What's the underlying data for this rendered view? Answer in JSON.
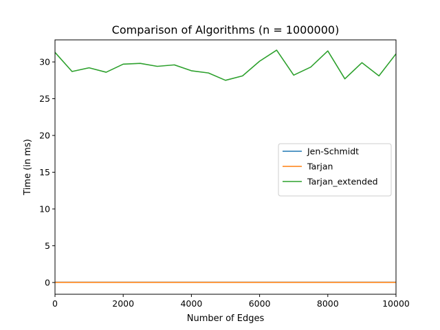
{
  "chart_data": {
    "type": "line",
    "title": "Comparison of Algorithms (n = 1000000)",
    "xlabel": "Number of Edges",
    "ylabel": "Time (in ms)",
    "xlim": [
      0,
      10000
    ],
    "ylim": [
      -1.6,
      33.0
    ],
    "xticks": [
      0,
      2000,
      4000,
      6000,
      8000,
      10000
    ],
    "yticks": [
      0,
      5,
      10,
      15,
      20,
      25,
      30
    ],
    "grid": false,
    "legend_position": "center-right",
    "x": [
      0,
      500,
      1000,
      1500,
      2000,
      2500,
      3000,
      3500,
      4000,
      4500,
      5000,
      5500,
      6000,
      6500,
      7000,
      7500,
      8000,
      8500,
      9000,
      9500,
      10000
    ],
    "series": [
      {
        "name": "Jen-Schmidt",
        "color": "#1f77b4",
        "values": [
          0.03,
          0.03,
          0.03,
          0.03,
          0.03,
          0.03,
          0.03,
          0.03,
          0.03,
          0.03,
          0.03,
          0.03,
          0.03,
          0.03,
          0.03,
          0.03,
          0.03,
          0.03,
          0.03,
          0.03,
          0.03
        ]
      },
      {
        "name": "Tarjan",
        "color": "#ff7f0e",
        "values": [
          0.02,
          0.02,
          0.02,
          0.02,
          0.02,
          0.02,
          0.02,
          0.02,
          0.02,
          0.02,
          0.02,
          0.02,
          0.02,
          0.02,
          0.02,
          0.02,
          0.02,
          0.02,
          0.02,
          0.02,
          0.02
        ]
      },
      {
        "name": "Tarjan_extended",
        "color": "#2ca02c",
        "values": [
          31.3,
          28.7,
          29.2,
          28.6,
          29.7,
          29.8,
          29.4,
          29.6,
          28.8,
          28.5,
          27.5,
          28.1,
          30.1,
          31.6,
          28.2,
          29.3,
          31.5,
          27.7,
          29.9,
          28.1,
          31.1
        ]
      }
    ]
  }
}
